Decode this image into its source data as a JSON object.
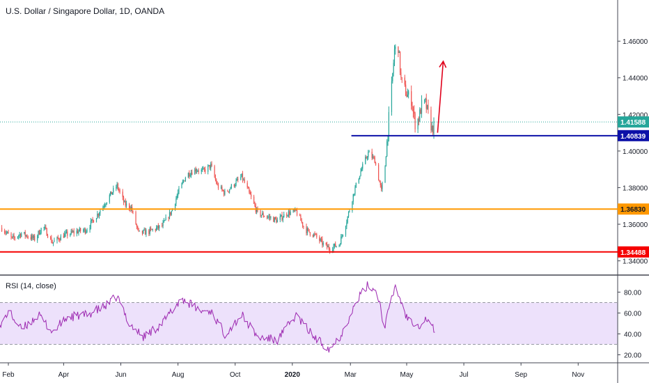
{
  "header": {
    "title": "U.S. Dollar / Singapore Dollar, 1D, OANDA"
  },
  "rsi_panel": {
    "title": "RSI (14, close)"
  },
  "colors": {
    "up": "#26a69a",
    "down": "#ef5350",
    "rsi_line": "#9c27b0",
    "rsi_band": "#ede1fb",
    "support_red": "#f50000",
    "support_orange": "#ff9800",
    "support_blue": "#0c10a8",
    "current_price": "#26a69a",
    "arrow": "#e0001b"
  },
  "chart_data": [
    {
      "type": "candlestick",
      "title": "U.S. Dollar / Singapore Dollar, 1D, OANDA",
      "ylim": [
        1.333,
        1.4825
      ],
      "y_ticks": [
        "1.34000",
        "1.36000",
        "1.38000",
        "1.40000",
        "1.42000",
        "1.44000",
        "1.46000"
      ],
      "x_ticks": [
        "Feb",
        "Apr",
        "Jun",
        "Aug",
        "Oct",
        "2020",
        "Mar",
        "May",
        "Jul",
        "Sep",
        "Nov"
      ],
      "close_path": [
        [
          "2019-01-25",
          1.358
        ],
        [
          "2019-02-05",
          1.352
        ],
        [
          "2019-02-15",
          1.355
        ],
        [
          "2019-03-01",
          1.352
        ],
        [
          "2019-03-10",
          1.359
        ],
        [
          "2019-03-20",
          1.35
        ],
        [
          "2019-04-01",
          1.354
        ],
        [
          "2019-04-15",
          1.356
        ],
        [
          "2019-04-25",
          1.357
        ],
        [
          "2019-05-08",
          1.366
        ],
        [
          "2019-05-22",
          1.377
        ],
        [
          "2019-05-28",
          1.381
        ],
        [
          "2019-06-05",
          1.371
        ],
        [
          "2019-06-12",
          1.369
        ],
        [
          "2019-06-20",
          1.355
        ],
        [
          "2019-07-01",
          1.356
        ],
        [
          "2019-07-15",
          1.359
        ],
        [
          "2019-07-25",
          1.367
        ],
        [
          "2019-08-01",
          1.377
        ],
        [
          "2019-08-10",
          1.387
        ],
        [
          "2019-08-20",
          1.39
        ],
        [
          "2019-08-28",
          1.389
        ],
        [
          "2019-09-05",
          1.392
        ],
        [
          "2019-09-12",
          1.381
        ],
        [
          "2019-09-20",
          1.377
        ],
        [
          "2019-09-28",
          1.381
        ],
        [
          "2019-10-08",
          1.386
        ],
        [
          "2019-10-15",
          1.378
        ],
        [
          "2019-10-25",
          1.366
        ],
        [
          "2019-11-05",
          1.364
        ],
        [
          "2019-11-15",
          1.362
        ],
        [
          "2019-11-25",
          1.366
        ],
        [
          "2019-12-05",
          1.367
        ],
        [
          "2019-12-15",
          1.357
        ],
        [
          "2019-12-25",
          1.354
        ],
        [
          "2020-01-05",
          1.348
        ],
        [
          "2020-01-10",
          1.347
        ],
        [
          "2020-01-20",
          1.349
        ],
        [
          "2020-01-28",
          1.362
        ],
        [
          "2020-02-05",
          1.378
        ],
        [
          "2020-02-12",
          1.389
        ],
        [
          "2020-02-20",
          1.399
        ],
        [
          "2020-02-27",
          1.395
        ],
        [
          "2020-03-05",
          1.378
        ],
        [
          "2020-03-09",
          1.392
        ],
        [
          "2020-03-13",
          1.418
        ],
        [
          "2020-03-16",
          1.435
        ],
        [
          "2020-03-19",
          1.455
        ],
        [
          "2020-03-23",
          1.457
        ],
        [
          "2020-03-26",
          1.439
        ],
        [
          "2020-04-01",
          1.431
        ],
        [
          "2020-04-06",
          1.428
        ],
        [
          "2020-04-10",
          1.415
        ],
        [
          "2020-04-14",
          1.418
        ],
        [
          "2020-04-17",
          1.425
        ],
        [
          "2020-04-21",
          1.426
        ],
        [
          "2020-04-24",
          1.42
        ],
        [
          "2020-04-28",
          1.412
        ],
        [
          "2020-04-30",
          1.413
        ]
      ],
      "horizontal_levels": [
        {
          "value": 1.34488,
          "label": "1.34488",
          "color": "#f50000",
          "start": "2019-01-20"
        },
        {
          "value": 1.3683,
          "label": "1.36830",
          "color": "#ff9800",
          "start": "2019-01-20"
        },
        {
          "value": 1.40839,
          "label": "1.40839",
          "color": "#0c10a8",
          "start": "2020-02-02"
        }
      ],
      "current_price": {
        "value": 1.41588,
        "label": "1.41588"
      },
      "annotations": [
        {
          "type": "arrow",
          "from": [
            "2020-05-04",
            1.41
          ],
          "to": [
            "2020-05-10",
            1.449
          ],
          "color": "#e0001b"
        }
      ]
    },
    {
      "type": "line",
      "title": "RSI (14, close)",
      "ylim": [
        13,
        95
      ],
      "y_ticks": [
        "20.00",
        "40.00",
        "60.00",
        "80.00"
      ],
      "band": [
        30,
        70
      ],
      "points": [
        [
          "2019-01-20",
          40
        ],
        [
          "2019-02-01",
          62
        ],
        [
          "2019-02-15",
          44
        ],
        [
          "2019-03-05",
          58
        ],
        [
          "2019-03-20",
          42
        ],
        [
          "2019-04-05",
          56
        ],
        [
          "2019-04-25",
          58
        ],
        [
          "2019-05-15",
          66
        ],
        [
          "2019-05-28",
          76
        ],
        [
          "2019-06-10",
          50
        ],
        [
          "2019-06-25",
          37
        ],
        [
          "2019-07-15",
          50
        ],
        [
          "2019-08-05",
          74
        ],
        [
          "2019-08-25",
          62
        ],
        [
          "2019-09-05",
          62
        ],
        [
          "2019-09-20",
          40
        ],
        [
          "2019-10-08",
          58
        ],
        [
          "2019-10-25",
          37
        ],
        [
          "2019-11-15",
          34
        ],
        [
          "2019-12-05",
          58
        ],
        [
          "2019-12-25",
          36
        ],
        [
          "2020-01-10",
          26
        ],
        [
          "2020-01-20",
          36
        ],
        [
          "2020-02-10",
          75
        ],
        [
          "2020-02-20",
          87
        ],
        [
          "2020-03-01",
          80
        ],
        [
          "2020-03-08",
          46
        ],
        [
          "2020-03-20",
          86
        ],
        [
          "2020-04-01",
          56
        ],
        [
          "2020-04-15",
          48
        ],
        [
          "2020-04-22",
          55
        ],
        [
          "2020-04-30",
          44
        ],
        [
          "2020-05-02",
          46
        ]
      ]
    }
  ]
}
